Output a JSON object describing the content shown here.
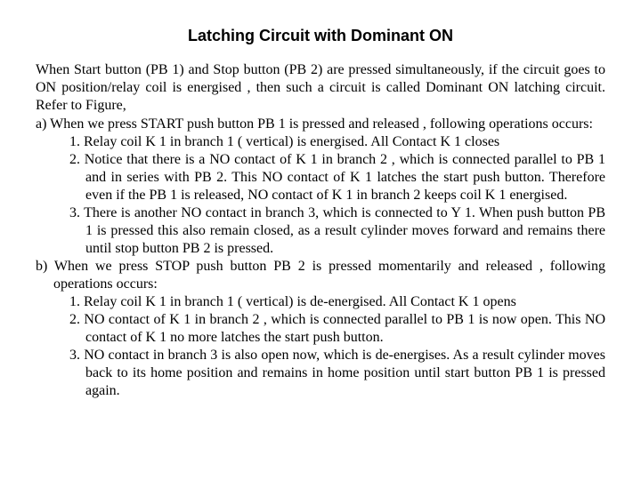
{
  "title": "Latching Circuit with Dominant ON",
  "intro": "When Start button (PB 1) and Stop button (PB 2) are pressed simultaneously, if the circuit goes to ON position/relay coil is energised , then such a circuit is called Dominant ON latching circuit. Refer to Figure,",
  "a_start": "a) When we press START push button PB 1 is pressed and released , following operations occurs:",
  "a1": "1. Relay coil K 1 in branch 1 ( vertical) is energised. All Contact K 1 closes",
  "a2": "2. Notice that there is a NO contact of K 1 in branch 2 , which is connected parallel to PB 1 and in series with PB 2. This NO contact of K 1 latches the start push button. Therefore even if the PB 1 is released, NO contact of K 1 in branch 2 keeps coil K 1 energised.",
  "a3": "3. There is another NO contact in branch 3, which is connected to Y 1. When push button PB 1 is pressed this also remain closed, as a result cylinder moves forward and remains there until stop button PB 2 is pressed.",
  "b_start": "b) When we press STOP push button PB 2 is pressed momentarily and released , following operations occurs:",
  "b1": "1. Relay coil K 1 in branch 1 ( vertical) is de-energised. All Contact K 1 opens",
  "b2": "2. NO contact of K 1 in branch 2 , which is connected parallel to PB 1 is now open. This NO contact of K 1 no more latches the start push button.",
  "b3": "3. NO contact in branch 3 is also open now, which is de-energises. As a result cylinder moves back to its home position and remains in home position until start button PB 1 is pressed again.",
  "colors": {
    "background": "#ffffff",
    "text": "#000000"
  },
  "typography": {
    "title_font": "Arial",
    "title_size": 18,
    "title_weight": "bold",
    "body_font": "Times New Roman",
    "body_size": 16,
    "line_height": 1.25,
    "alignment": "justify"
  }
}
